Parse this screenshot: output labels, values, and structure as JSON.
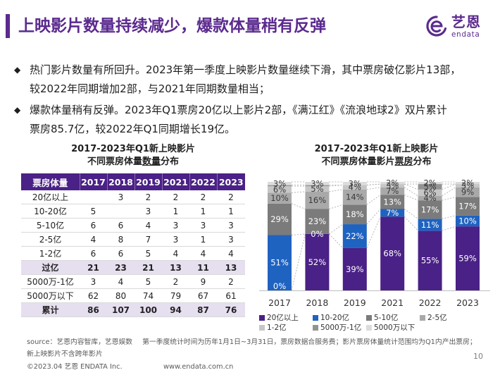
{
  "header": {
    "title": "上映影片数量持续减少，爆款体量稍有反弹",
    "accent_color": "#5b2a8e"
  },
  "brand": {
    "name": "艺恩",
    "wordmark": "endata",
    "icon": "endata-logo-icon"
  },
  "bullets": [
    {
      "lines": [
        "热门影片数量有所回升。2023年第一季度上映影片数量继续下滑，其中票房破亿影片13部，",
        "较2022年同期增加2部，与2021年同期数量相当；"
      ]
    },
    {
      "lines": [
        "爆款体量稍有反弹。2023年Q1票房20亿以上影片2部，《满江红》《流浪地球2》双片累计",
        "票房85.7亿，较2022年Q1同期增长19亿。"
      ]
    }
  ],
  "table": {
    "title_line1": "2017-2023年Q1新上映影片",
    "title_line2_pre": "不同票房体量",
    "title_line2_em": "数量",
    "title_line2_post": "分布",
    "headers": [
      "票房体量",
      "2017",
      "2018",
      "2019",
      "2021",
      "2022",
      "2023"
    ],
    "rows": [
      {
        "label": "20亿以上",
        "values": [
          "",
          "3",
          "2",
          "2",
          "2",
          "2"
        ]
      },
      {
        "label": "10-20亿",
        "values": [
          "5",
          "",
          "3",
          "1",
          "1",
          "1"
        ]
      },
      {
        "label": "5-10亿",
        "values": [
          "6",
          "6",
          "4",
          "3",
          "3",
          "3"
        ]
      },
      {
        "label": "2-5亿",
        "values": [
          "4",
          "8",
          "7",
          "3",
          "1",
          "3"
        ]
      },
      {
        "label": "1-2亿",
        "values": [
          "6",
          "6",
          "5",
          "4",
          "4",
          "4"
        ]
      },
      {
        "label": "过亿",
        "values": [
          "21",
          "23",
          "21",
          "13",
          "11",
          "13"
        ]
      },
      {
        "label": "5000万-1亿",
        "values": [
          "3",
          "4",
          "5",
          "2",
          "9",
          "2"
        ]
      },
      {
        "label": "5000万以下",
        "values": [
          "62",
          "80",
          "74",
          "79",
          "67",
          "61"
        ]
      },
      {
        "label": "累计",
        "values": [
          "86",
          "107",
          "100",
          "94",
          "87",
          "76"
        ]
      }
    ]
  },
  "chart_title": {
    "line1": "2017-2023年Q1新上映影片",
    "line2_pre": "不同票房体量影片",
    "line2_em": "票房",
    "line2_post": "分布"
  },
  "chart_data": {
    "type": "bar",
    "stacked": true,
    "ylim": [
      0,
      100
    ],
    "grid": false,
    "legend_position": "bottom",
    "categories": [
      "2017",
      "2018",
      "2019",
      "2021",
      "2022",
      "2023"
    ],
    "series": [
      {
        "name": "20亿以上",
        "color": "#4a2186",
        "label_color": "#ffffff",
        "values": [
          0,
          52,
          39,
          68,
          55,
          59
        ],
        "labels": [
          "0%",
          "52%",
          "39%",
          "68%",
          "55%",
          "59%"
        ]
      },
      {
        "name": "10-20亿",
        "color": "#1f63c0",
        "label_color": "#ffffff",
        "values": [
          51,
          0,
          22,
          7,
          11,
          10
        ],
        "labels": [
          "51%",
          "0%",
          "22%",
          "7%",
          "11%",
          "10%"
        ]
      },
      {
        "name": "5-10亿",
        "color": "#7b7b7b",
        "label_color": "#ffffff",
        "values": [
          29,
          23,
          18,
          13,
          17,
          17
        ],
        "labels": [
          "29%",
          "23%",
          "18%",
          "13%",
          "17%",
          "17%"
        ]
      },
      {
        "name": "2-5亿",
        "color": "#a9a9a9",
        "label_color": "#3a3a3a",
        "values": [
          10,
          16,
          14,
          7,
          4,
          9
        ],
        "labels": [
          "10%",
          "16%",
          "14%",
          "7%",
          "4%",
          "9%"
        ]
      },
      {
        "name": "1-2亿",
        "color": "#c6c6c6",
        "label_color": "#3a3a3a",
        "values": [
          6,
          5,
          4,
          3,
          6,
          3
        ],
        "labels": [
          "6%",
          "5%",
          "4%",
          "3%",
          "6%",
          "3%"
        ]
      },
      {
        "name": "5000万-1亿",
        "color": "#939393",
        "label_color": "#3a3a3a",
        "values": [
          1,
          1,
          0,
          0,
          5,
          0
        ],
        "labels": [
          "",
          "",
          "",
          "",
          "5%",
          ""
        ]
      },
      {
        "name": "5000万以下",
        "color": "#dcdcdc",
        "label_color": "#3a3a3a",
        "values": [
          3,
          3,
          3,
          2,
          2,
          2
        ],
        "labels": [
          "3%",
          "3%",
          "3%",
          "2%",
          "2%",
          "2%"
        ]
      }
    ]
  },
  "footer": {
    "source": "source：艺恩内容智库，艺恩娱数",
    "note_line1": "第一季度统计时间为历年1月1日~3月31日，票房数据合服务费；影片票房体量统计范围均为Q1内产出票房；",
    "note_line2": "新上映影片不含跨年影片",
    "page_number": "10",
    "copyright": "©2023.04 艺恩 ENDATA Inc.",
    "website": "www.endata.com.cn"
  }
}
